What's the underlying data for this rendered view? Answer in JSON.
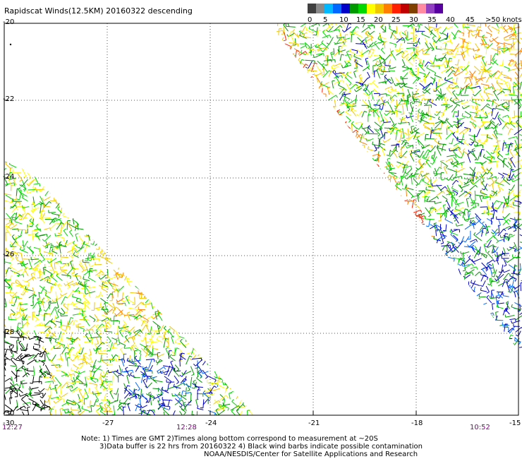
{
  "title": "Rapidscat Winds(12.5KM) 20160322 descending",
  "speed_scale": {
    "unit": "knots",
    "colors": [
      "#404040",
      "#8a8a8a",
      "#00b8ff",
      "#0068ff",
      "#0000c8",
      "#009a00",
      "#00d800",
      "#ffff00",
      "#f0c800",
      "#ff8000",
      "#ff2000",
      "#c00000",
      "#804000",
      "#ff8ca0",
      "#9040c0",
      "#5800a0"
    ],
    "labels": [
      "0",
      "5",
      "10",
      "15",
      "20",
      "25",
      "30",
      "35",
      "40",
      "45",
      ">50 knots"
    ]
  },
  "axes": {
    "lat_ticks": [
      "-20",
      "-22",
      "-24",
      "-26",
      "-28",
      "-30"
    ],
    "lon_ticks": [
      "-30",
      "-27",
      "-24",
      "-21",
      "-18",
      "-15"
    ]
  },
  "time_labels": [
    "12:27",
    "12:28",
    "10:52"
  ],
  "notes": [
    "Note: 1) Times are GMT 2)Times along bottom correspond to measurement at ~20S",
    "3)Data buffer is 22 hrs from 20160322 4) Black wind barbs indicate possible contamination",
    "NOAA/NESDIS/Center for Satellite Applications and Research"
  ]
}
